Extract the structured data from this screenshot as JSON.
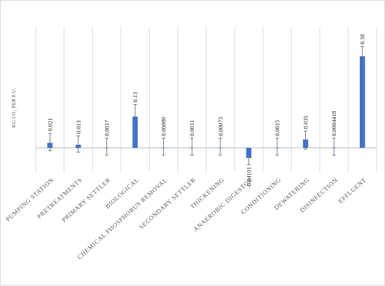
{
  "chart_data": {
    "type": "bar",
    "ylabel": "KG CO₂ PER F.U.",
    "categories": [
      "PUMPING STATION",
      "PRETREATMENTS",
      "PRIMARY SETTLER",
      "BIOLOGICAL",
      "CHEMICAL PHOSPHORUS REMOVAL",
      "SECONDARY SETTLER",
      "THICKENING",
      "ANAEROBIC DIGESTOR",
      "CONDITIONING",
      "DEWATERING",
      "DISINFECTION",
      "EFFLUENT"
    ],
    "values": [
      0.021,
      0.013,
      0.0017,
      0.13,
      0.0008,
      0.0011,
      0.00073,
      -0.04191,
      0.0015,
      0.035,
      0.0004418,
      0.38
    ],
    "value_labels": [
      "0.021",
      "0.013",
      "0.0017",
      "0.13",
      "0.00080",
      "0.0011",
      "0.00073",
      "-0.04191",
      "0.0015",
      "0.035",
      "0.0004418",
      "0.38"
    ],
    "error_low": [
      -0.012,
      -0.018,
      -0.03,
      0.08,
      -0.03,
      -0.03,
      -0.03,
      -0.07,
      -0.03,
      -0.005,
      -0.03,
      0.34
    ],
    "error_high": [
      0.06,
      0.05,
      0.04,
      0.18,
      0.04,
      0.04,
      0.04,
      -0.02,
      0.04,
      0.07,
      0.04,
      0.42
    ],
    "ylim": [
      -0.1,
      0.5
    ],
    "grid": "vertical",
    "legend": "none",
    "colors": {
      "bar": "#4472c4",
      "grid": "#d9d9d9",
      "axis": "#bfbfbf",
      "error": "#595959"
    }
  }
}
